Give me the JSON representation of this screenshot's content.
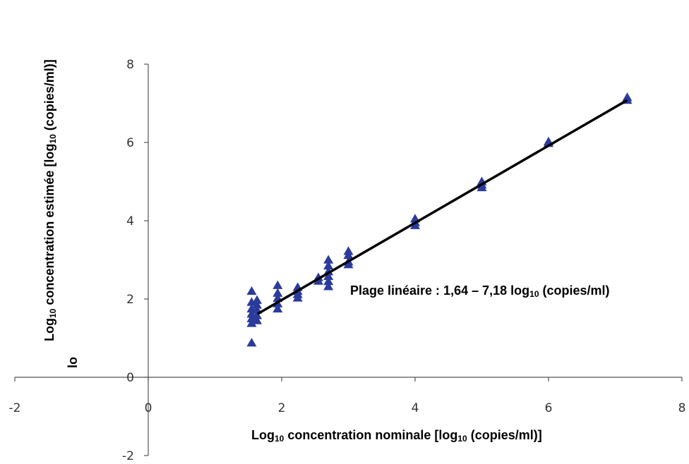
{
  "chart_data": {
    "type": "scatter",
    "xlabel_parts": [
      "Log",
      "10",
      " concentration nominale [log",
      "10",
      " (copies/ml)]"
    ],
    "ylabel_parts": [
      "Log",
      "10",
      " concentration estimée [log",
      "10",
      " (copies/ml)]"
    ],
    "annotation_parts": [
      "Plage linéaire : 1,64 – 7,18 log",
      "10",
      " (copies/ml)"
    ],
    "stray_mark": "lo",
    "xlim": [
      -2,
      8
    ],
    "ylim": [
      -2,
      8
    ],
    "x_ticks": [
      -2,
      0,
      2,
      4,
      6,
      8
    ],
    "y_ticks": [
      -2,
      0,
      2,
      4,
      6,
      8
    ],
    "grid": false,
    "marker": "triangle",
    "marker_color": "#2B3B9C",
    "line_color": "#000000",
    "series": [
      {
        "points": [
          [
            1.55,
            0.88
          ],
          [
            1.55,
            1.38
          ],
          [
            1.55,
            1.5
          ],
          [
            1.55,
            1.62
          ],
          [
            1.55,
            1.75
          ],
          [
            1.55,
            1.92
          ],
          [
            1.55,
            2.2
          ],
          [
            1.63,
            1.45
          ],
          [
            1.63,
            1.58
          ],
          [
            1.63,
            1.72
          ],
          [
            1.63,
            1.85
          ],
          [
            1.63,
            1.97
          ],
          [
            1.94,
            1.75
          ],
          [
            1.94,
            1.88
          ],
          [
            1.94,
            2.02
          ],
          [
            1.94,
            2.15
          ],
          [
            1.94,
            2.35
          ],
          [
            2.24,
            2.03
          ],
          [
            2.24,
            2.12
          ],
          [
            2.24,
            2.2
          ],
          [
            2.24,
            2.3
          ],
          [
            2.55,
            2.46
          ],
          [
            2.55,
            2.55
          ],
          [
            2.7,
            2.32
          ],
          [
            2.7,
            2.45
          ],
          [
            2.7,
            2.58
          ],
          [
            2.7,
            2.7
          ],
          [
            2.7,
            2.85
          ],
          [
            2.7,
            3.0
          ],
          [
            3.0,
            2.88
          ],
          [
            3.0,
            2.95
          ],
          [
            3.0,
            3.12
          ],
          [
            3.0,
            3.22
          ],
          [
            4.0,
            3.88
          ],
          [
            4.0,
            3.96
          ],
          [
            4.0,
            4.05
          ],
          [
            5.0,
            4.85
          ],
          [
            5.0,
            4.92
          ],
          [
            5.0,
            5.0
          ],
          [
            6.0,
            5.98
          ],
          [
            6.0,
            6.02
          ],
          [
            7.18,
            7.08
          ],
          [
            7.18,
            7.15
          ]
        ]
      }
    ],
    "fit_line": {
      "x": [
        1.64,
        7.18
      ],
      "y": [
        1.62,
        7.08
      ]
    }
  }
}
